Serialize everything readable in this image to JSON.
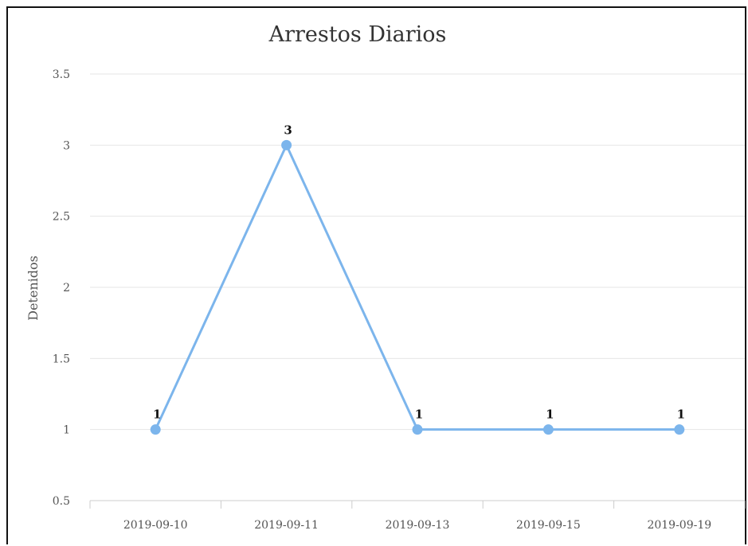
{
  "chart_data": {
    "type": "line",
    "title": "Arrestos Diarios",
    "xlabel": "",
    "ylabel": "Detenidos",
    "categories": [
      "2019-09-10",
      "2019-09-11",
      "2019-09-13",
      "2019-09-15",
      "2019-09-19"
    ],
    "series": [
      {
        "values": [
          1,
          3,
          1,
          1,
          1
        ],
        "color": "#7cb5ec"
      }
    ],
    "data_labels": [
      "1",
      "3",
      "1",
      "1",
      "1"
    ],
    "ylim": [
      0.5,
      3.5
    ],
    "yticks": [
      "0.5",
      "1",
      "1.5",
      "2",
      "2.5",
      "3",
      "3.5"
    ],
    "ytick_values": [
      0.5,
      1,
      1.5,
      2,
      2.5,
      3,
      3.5
    ],
    "grid": true,
    "legend": "none"
  }
}
